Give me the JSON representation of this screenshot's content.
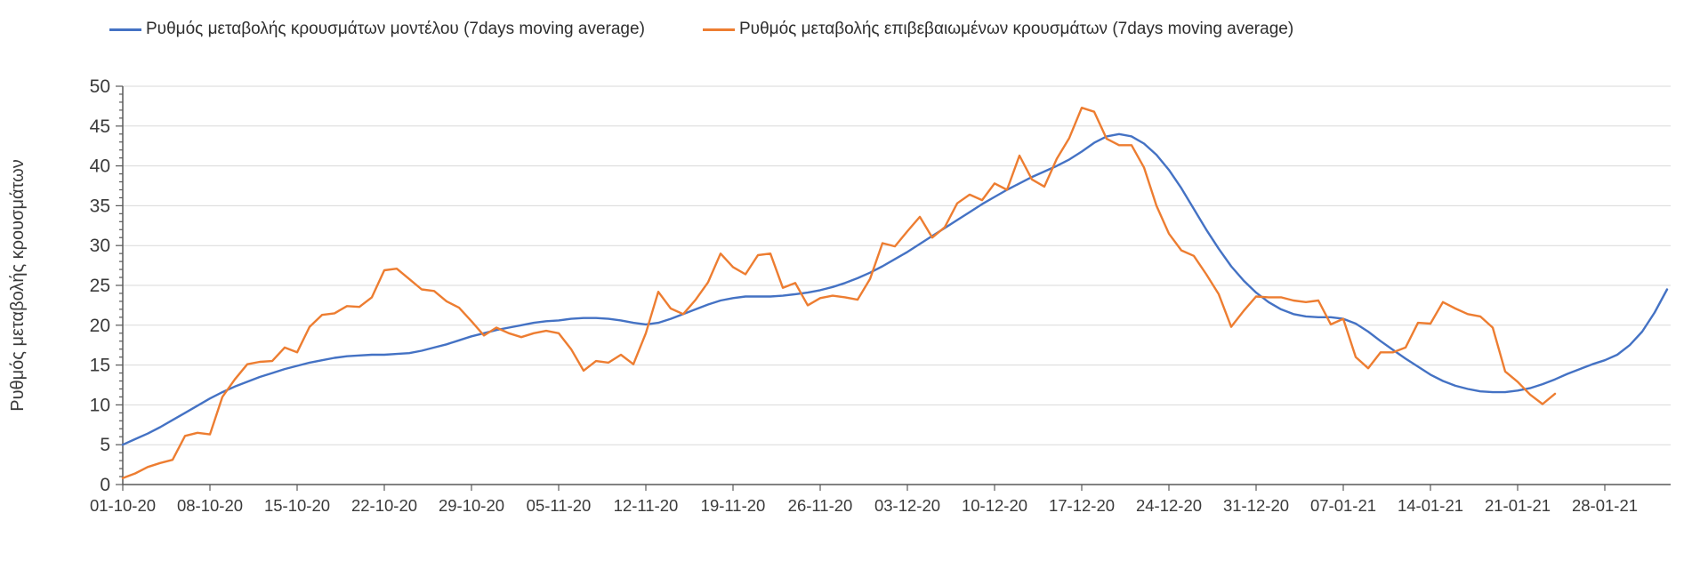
{
  "page": {
    "background": "#ffffff"
  },
  "chart_data": {
    "type": "line",
    "title": "",
    "xlabel": "",
    "ylabel": "Ρυθμός μεταβολής κρουσμάτων",
    "ylim": [
      0,
      50
    ],
    "y_ticks": [
      0,
      5,
      10,
      15,
      20,
      25,
      30,
      35,
      40,
      45,
      50
    ],
    "x_tick_labels": [
      "01-10-20",
      "08-10-20",
      "15-10-20",
      "22-10-20",
      "29-10-20",
      "05-11-20",
      "12-11-20",
      "19-11-20",
      "26-11-20",
      "03-12-20",
      "10-12-20",
      "17-12-20",
      "24-12-20",
      "31-12-20",
      "07-01-21",
      "14-01-21",
      "21-01-21",
      "28-01-21"
    ],
    "x_tick_interval_days": 7,
    "grid": "horizontal",
    "legend_position": "top",
    "series": [
      {
        "name": "Ρυθμός μεταβολής κρουσμάτων μοντέλου (7days moving average)",
        "color": "#4472C4",
        "start_date": "01-10-20",
        "values": [
          5.0,
          5.7,
          6.4,
          7.2,
          8.1,
          9.0,
          9.9,
          10.8,
          11.6,
          12.3,
          12.9,
          13.5,
          14.0,
          14.5,
          14.9,
          15.3,
          15.6,
          15.9,
          16.1,
          16.2,
          16.3,
          16.3,
          16.4,
          16.5,
          16.8,
          17.2,
          17.6,
          18.1,
          18.6,
          19.0,
          19.4,
          19.7,
          20.0,
          20.3,
          20.5,
          20.6,
          20.8,
          20.9,
          20.9,
          20.8,
          20.6,
          20.3,
          20.1,
          20.3,
          20.8,
          21.4,
          22.0,
          22.6,
          23.1,
          23.4,
          23.6,
          23.6,
          23.6,
          23.7,
          23.9,
          24.1,
          24.4,
          24.8,
          25.3,
          25.9,
          26.6,
          27.4,
          28.3,
          29.2,
          30.2,
          31.2,
          32.2,
          33.2,
          34.2,
          35.2,
          36.1,
          37.0,
          37.8,
          38.6,
          39.3,
          40.0,
          40.8,
          41.8,
          42.9,
          43.7,
          44.0,
          43.7,
          42.8,
          41.4,
          39.5,
          37.2,
          34.6,
          32.0,
          29.6,
          27.4,
          25.6,
          24.1,
          22.9,
          22.0,
          21.4,
          21.1,
          21.0,
          21.0,
          20.8,
          20.2,
          19.2,
          18.0,
          16.9,
          15.8,
          14.8,
          13.8,
          13.0,
          12.4,
          12.0,
          11.7,
          11.6,
          11.6,
          11.8,
          12.1,
          12.6,
          13.2,
          13.9,
          14.5,
          15.1,
          15.6,
          16.3,
          17.5,
          19.2,
          21.6,
          24.5
        ]
      },
      {
        "name": "Ρυθμός μεταβολής επιβεβαιωμένων κρουσμάτων (7days moving average)",
        "color": "#ED7D31",
        "start_date": "01-10-20",
        "values": [
          0.8,
          1.4,
          2.2,
          2.7,
          3.1,
          6.1,
          6.5,
          6.3,
          11.0,
          13.2,
          15.1,
          15.4,
          15.5,
          17.2,
          16.6,
          19.8,
          21.3,
          21.5,
          22.4,
          22.3,
          23.5,
          26.9,
          27.1,
          25.8,
          24.5,
          24.3,
          23.0,
          22.2,
          20.5,
          18.7,
          19.7,
          19.0,
          18.5,
          19.0,
          19.3,
          19.0,
          17.0,
          14.3,
          15.5,
          15.3,
          16.3,
          15.1,
          19.0,
          24.2,
          22.1,
          21.4,
          23.2,
          25.4,
          29.0,
          27.3,
          26.4,
          28.8,
          29.0,
          24.7,
          25.3,
          22.5,
          23.4,
          23.7,
          23.5,
          23.2,
          25.8,
          30.3,
          29.9,
          31.8,
          33.6,
          31.0,
          32.3,
          35.3,
          36.4,
          35.7,
          37.8,
          37.0,
          41.3,
          38.3,
          37.4,
          40.9,
          43.5,
          47.3,
          46.8,
          43.4,
          42.6,
          42.6,
          39.8,
          35.0,
          31.5,
          29.4,
          28.7,
          26.4,
          23.9,
          19.8,
          21.8,
          23.6,
          23.5,
          23.5,
          23.1,
          22.9,
          23.1,
          20.1,
          20.8,
          16.0,
          14.6,
          16.6,
          16.6,
          17.2,
          20.3,
          20.2,
          22.9,
          22.1,
          21.4,
          21.1,
          19.7,
          14.2,
          12.9,
          11.3,
          10.1,
          11.4
        ]
      }
    ]
  }
}
